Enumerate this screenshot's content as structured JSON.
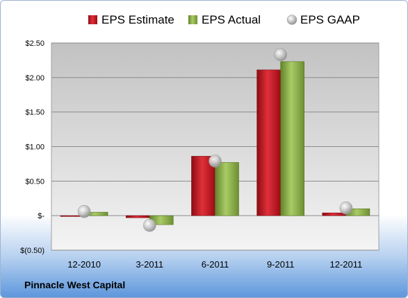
{
  "chart_data": {
    "type": "bar",
    "categories": [
      "12-2010",
      "3-2011",
      "6-2011",
      "9-2011",
      "12-2011"
    ],
    "series": [
      {
        "name": "EPS Estimate",
        "values": [
          0.0,
          -0.03,
          0.86,
          2.11,
          0.04
        ],
        "color": "#c0111b"
      },
      {
        "name": "EPS Actual",
        "values": [
          0.05,
          -0.13,
          0.77,
          2.23,
          0.1
        ],
        "color": "#8db04a"
      }
    ],
    "markers": {
      "name": "EPS GAAP",
      "values": [
        0.06,
        -0.14,
        0.79,
        2.33,
        0.11
      ],
      "color": "#b8b8b8"
    },
    "yticks": [
      -0.5,
      0,
      0.5,
      1.0,
      1.5,
      2.0,
      2.5
    ],
    "ytick_labels": [
      "$(0.50)",
      "$-",
      "$0.50",
      "$1.00",
      "$1.50",
      "$2.00",
      "$2.50"
    ],
    "ylim": [
      -0.5,
      2.5
    ],
    "grid": true,
    "legend_position": "top"
  },
  "footer": {
    "company": "Pinnacle West Capital"
  }
}
